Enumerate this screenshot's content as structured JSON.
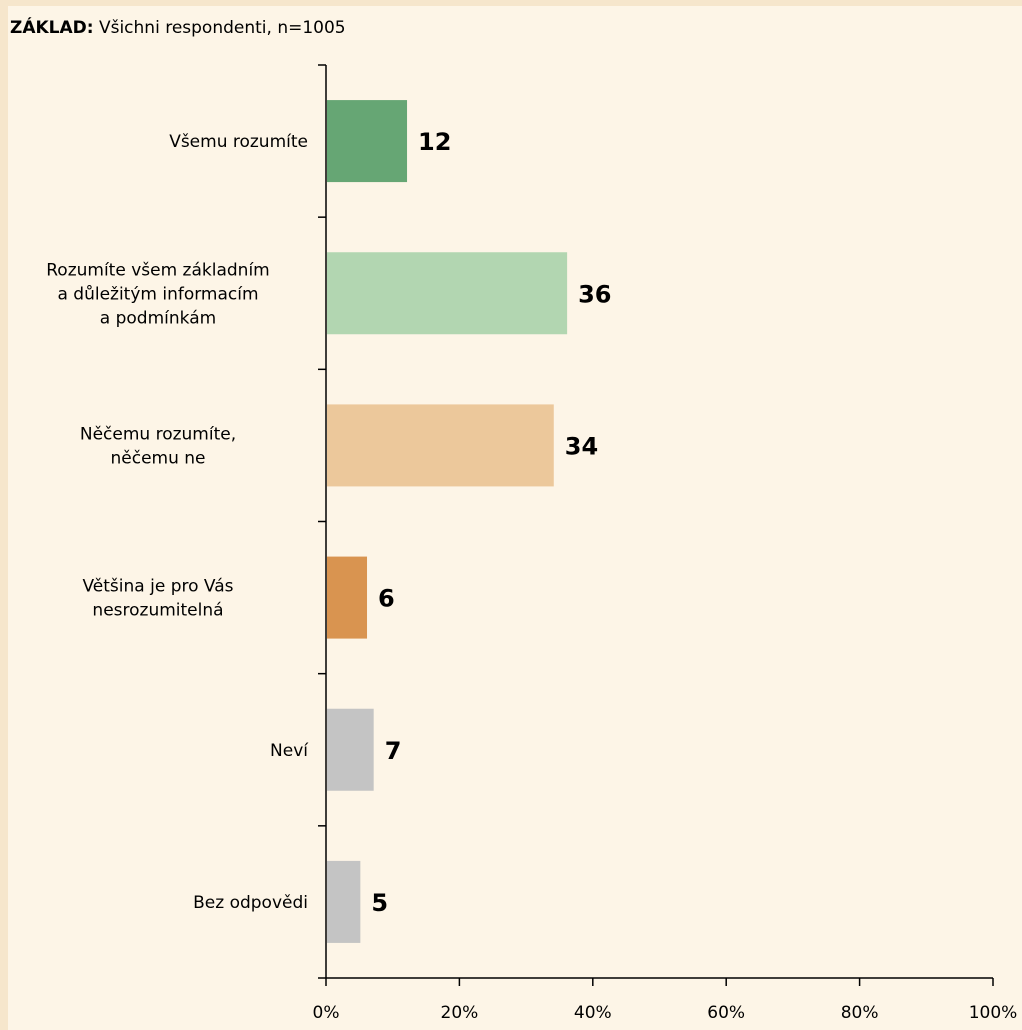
{
  "header": {
    "basis_prefix": "ZÁKLAD:",
    "basis_text": "Všichni respondenti, n=1005"
  },
  "chart_data": {
    "type": "bar",
    "orientation": "horizontal",
    "categories": [
      [
        "Všemu rozumíte"
      ],
      [
        "Rozumíte všem základním",
        "a důležitým informacím",
        "a podmínkám"
      ],
      [
        "Něčemu rozumíte,",
        "něčemu ne"
      ],
      [
        "Většina je pro Vás",
        "nesrozumitelná"
      ],
      [
        "Neví"
      ],
      [
        "Bez odpovědi"
      ]
    ],
    "values": [
      12,
      36,
      34,
      6,
      7,
      5
    ],
    "colors": [
      "#66a674",
      "#b2d6b1",
      "#ecc89b",
      "#d99450",
      "#c4c4c4",
      "#c4c4c4"
    ],
    "xlim": [
      0,
      100
    ],
    "xticks": [
      "0%",
      "20%",
      "40%",
      "60%",
      "80%",
      "100%"
    ],
    "grid": false,
    "legend": "none"
  }
}
